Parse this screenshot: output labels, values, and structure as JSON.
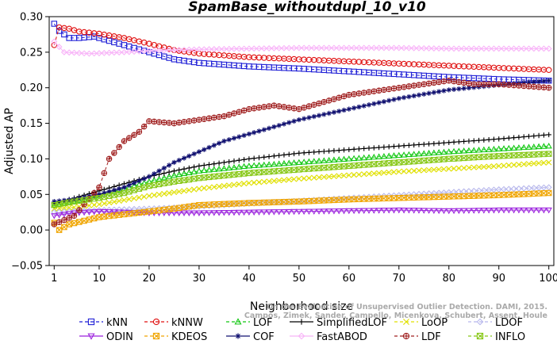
{
  "chart_data": {
    "type": "line",
    "title": "SpamBase_withoutdupl_10_v10",
    "xlabel": "Neighborhood size",
    "ylabel": "Adjusted AP",
    "xlim": [
      0,
      101
    ],
    "ylim": [
      -0.05,
      0.3
    ],
    "x_ticks": [
      1,
      10,
      20,
      30,
      40,
      50,
      60,
      70,
      80,
      90,
      100
    ],
    "y_ticks": [
      -0.05,
      0.0,
      0.05,
      0.1,
      0.15,
      0.2,
      0.25,
      0.3
    ],
    "y_tick_labels": [
      "−0.05",
      "0.00",
      "0.05",
      "0.10",
      "0.15",
      "0.20",
      "0.25",
      "0.30"
    ],
    "grid": false,
    "legend_position": "bottom",
    "series": [
      {
        "name": "kNN",
        "color": "#1f1fd6",
        "marker": "square",
        "dash": "4,3",
        "points": [
          [
            1,
            0.29
          ],
          [
            2,
            0.28
          ],
          [
            4,
            0.27
          ],
          [
            6,
            0.27
          ],
          [
            9,
            0.272
          ],
          [
            10,
            0.27
          ],
          [
            15,
            0.26
          ],
          [
            20,
            0.25
          ],
          [
            25,
            0.24
          ],
          [
            30,
            0.235
          ],
          [
            40,
            0.23
          ],
          [
            50,
            0.227
          ],
          [
            60,
            0.223
          ],
          [
            70,
            0.219
          ],
          [
            80,
            0.215
          ],
          [
            90,
            0.212
          ],
          [
            100,
            0.21
          ]
        ]
      },
      {
        "name": "kNNW",
        "color": "#e01010",
        "marker": "circle",
        "dash": "4,3",
        "points": [
          [
            1,
            0.26
          ],
          [
            2,
            0.285
          ],
          [
            4,
            0.283
          ],
          [
            6,
            0.279
          ],
          [
            10,
            0.276
          ],
          [
            15,
            0.27
          ],
          [
            20,
            0.262
          ],
          [
            25,
            0.253
          ],
          [
            30,
            0.248
          ],
          [
            40,
            0.243
          ],
          [
            50,
            0.24
          ],
          [
            60,
            0.237
          ],
          [
            70,
            0.234
          ],
          [
            80,
            0.231
          ],
          [
            90,
            0.228
          ],
          [
            100,
            0.225
          ]
        ]
      },
      {
        "name": "LOF",
        "color": "#12c712",
        "marker": "triangle",
        "dash": "4,3",
        "points": [
          [
            1,
            0.035
          ],
          [
            5,
            0.04
          ],
          [
            10,
            0.048
          ],
          [
            15,
            0.058
          ],
          [
            20,
            0.068
          ],
          [
            25,
            0.077
          ],
          [
            30,
            0.083
          ],
          [
            40,
            0.09
          ],
          [
            50,
            0.095
          ],
          [
            60,
            0.1
          ],
          [
            70,
            0.105
          ],
          [
            80,
            0.11
          ],
          [
            90,
            0.114
          ],
          [
            100,
            0.118
          ]
        ]
      },
      {
        "name": "SimplifiedLOF",
        "color": "#000000",
        "marker": "plus",
        "dash": "",
        "points": [
          [
            1,
            0.037
          ],
          [
            5,
            0.045
          ],
          [
            10,
            0.055
          ],
          [
            15,
            0.065
          ],
          [
            20,
            0.075
          ],
          [
            25,
            0.083
          ],
          [
            30,
            0.09
          ],
          [
            40,
            0.1
          ],
          [
            50,
            0.108
          ],
          [
            60,
            0.113
          ],
          [
            70,
            0.118
          ],
          [
            80,
            0.123
          ],
          [
            90,
            0.128
          ],
          [
            100,
            0.134
          ]
        ]
      },
      {
        "name": "LoOP",
        "color": "#e0e000",
        "marker": "x",
        "dash": "4,3",
        "points": [
          [
            1,
            0.03
          ],
          [
            5,
            0.032
          ],
          [
            10,
            0.036
          ],
          [
            15,
            0.042
          ],
          [
            20,
            0.048
          ],
          [
            25,
            0.053
          ],
          [
            30,
            0.058
          ],
          [
            40,
            0.066
          ],
          [
            50,
            0.072
          ],
          [
            60,
            0.077
          ],
          [
            70,
            0.082
          ],
          [
            80,
            0.086
          ],
          [
            90,
            0.09
          ],
          [
            100,
            0.095
          ]
        ]
      },
      {
        "name": "LDOF",
        "color": "#b8b8ec",
        "marker": "diamond",
        "dash": "4,3",
        "points": [
          [
            1,
            0.025
          ],
          [
            10,
            0.028
          ],
          [
            20,
            0.03
          ],
          [
            30,
            0.033
          ],
          [
            40,
            0.037
          ],
          [
            50,
            0.041
          ],
          [
            60,
            0.045
          ],
          [
            70,
            0.049
          ],
          [
            80,
            0.053
          ],
          [
            90,
            0.057
          ],
          [
            100,
            0.06
          ]
        ]
      },
      {
        "name": "ODIN",
        "color": "#9b22dd",
        "marker": "triangle-down",
        "dash": "",
        "points": [
          [
            1,
            0.02
          ],
          [
            5,
            0.024
          ],
          [
            10,
            0.026
          ],
          [
            20,
            0.024
          ],
          [
            30,
            0.024
          ],
          [
            40,
            0.025
          ],
          [
            50,
            0.026
          ],
          [
            60,
            0.027
          ],
          [
            70,
            0.028
          ],
          [
            80,
            0.027
          ],
          [
            90,
            0.028
          ],
          [
            100,
            0.028
          ]
        ]
      },
      {
        "name": "KDEOS",
        "color": "#f0a500",
        "marker": "square-x",
        "dash": "4,3",
        "points": [
          [
            1,
            0.01
          ],
          [
            2,
            0.0
          ],
          [
            4,
            0.008
          ],
          [
            10,
            0.018
          ],
          [
            20,
            0.026
          ],
          [
            25,
            0.03
          ],
          [
            30,
            0.035
          ],
          [
            40,
            0.038
          ],
          [
            50,
            0.04
          ],
          [
            60,
            0.043
          ],
          [
            70,
            0.045
          ],
          [
            80,
            0.047
          ],
          [
            90,
            0.049
          ],
          [
            100,
            0.052
          ]
        ]
      },
      {
        "name": "COF",
        "color": "#101070",
        "marker": "asterisk",
        "dash": "",
        "points": [
          [
            1,
            0.04
          ],
          [
            5,
            0.043
          ],
          [
            10,
            0.05
          ],
          [
            15,
            0.06
          ],
          [
            20,
            0.075
          ],
          [
            25,
            0.095
          ],
          [
            30,
            0.11
          ],
          [
            35,
            0.125
          ],
          [
            40,
            0.135
          ],
          [
            50,
            0.155
          ],
          [
            60,
            0.17
          ],
          [
            70,
            0.185
          ],
          [
            80,
            0.197
          ],
          [
            90,
            0.204
          ],
          [
            100,
            0.21
          ]
        ]
      },
      {
        "name": "FastABOD",
        "color": "#f8b4f8",
        "marker": "diamond",
        "dash": "",
        "points": [
          [
            1,
            0.265
          ],
          [
            3,
            0.25
          ],
          [
            8,
            0.248
          ],
          [
            15,
            0.25
          ],
          [
            20,
            0.252
          ],
          [
            30,
            0.254
          ],
          [
            40,
            0.255
          ],
          [
            50,
            0.256
          ],
          [
            60,
            0.256
          ],
          [
            70,
            0.256
          ],
          [
            80,
            0.255
          ],
          [
            90,
            0.255
          ],
          [
            100,
            0.255
          ]
        ]
      },
      {
        "name": "LDF",
        "color": "#a02020",
        "marker": "circle-plus",
        "dash": "4,3",
        "points": [
          [
            1,
            0.008
          ],
          [
            5,
            0.02
          ],
          [
            10,
            0.06
          ],
          [
            12,
            0.1
          ],
          [
            15,
            0.125
          ],
          [
            18,
            0.138
          ],
          [
            20,
            0.153
          ],
          [
            25,
            0.15
          ],
          [
            30,
            0.155
          ],
          [
            35,
            0.16
          ],
          [
            40,
            0.17
          ],
          [
            45,
            0.175
          ],
          [
            50,
            0.17
          ],
          [
            55,
            0.18
          ],
          [
            60,
            0.19
          ],
          [
            65,
            0.195
          ],
          [
            70,
            0.2
          ],
          [
            75,
            0.205
          ],
          [
            80,
            0.21
          ],
          [
            85,
            0.205
          ],
          [
            90,
            0.205
          ],
          [
            100,
            0.2
          ]
        ]
      },
      {
        "name": "INFLO",
        "color": "#88c818",
        "marker": "square-x",
        "dash": "4,3",
        "points": [
          [
            1,
            0.035
          ],
          [
            5,
            0.04
          ],
          [
            10,
            0.045
          ],
          [
            15,
            0.052
          ],
          [
            20,
            0.062
          ],
          [
            25,
            0.068
          ],
          [
            30,
            0.073
          ],
          [
            40,
            0.08
          ],
          [
            50,
            0.085
          ],
          [
            60,
            0.09
          ],
          [
            70,
            0.095
          ],
          [
            80,
            0.1
          ],
          [
            90,
            0.104
          ],
          [
            100,
            0.107
          ]
        ]
      }
    ],
    "credit": [
      "Campos, Zimek, Sander, Campello, Micenkova, Schubert, Assent, Houle",
      "On the Evaluation of Unsupervised Outlier Detection. DAMI, 2015."
    ]
  }
}
